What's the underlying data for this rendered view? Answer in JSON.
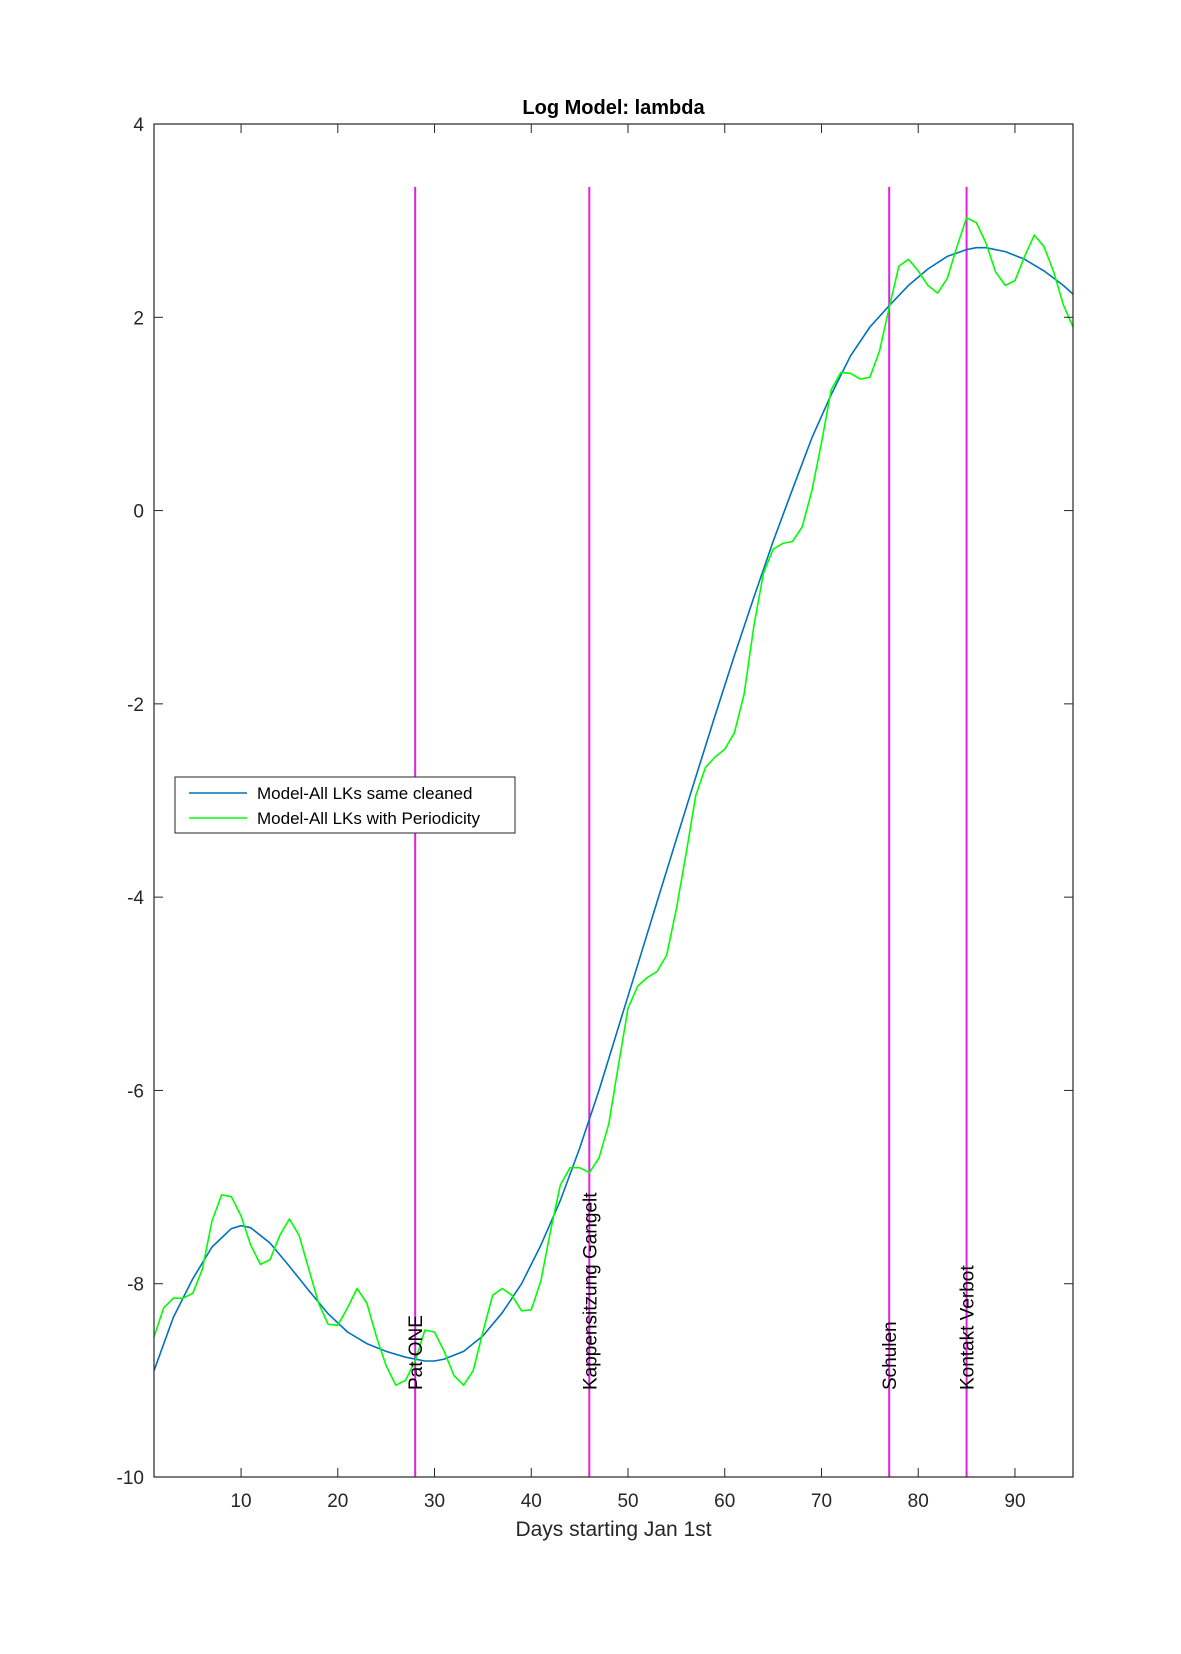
{
  "chart_data": {
    "type": "line",
    "title": "Log Model: lambda",
    "xlabel": "Days starting Jan 1st",
    "ylabel": "",
    "xlim": [
      1,
      96
    ],
    "ylim": [
      -10,
      4
    ],
    "xticks": [
      10,
      20,
      30,
      40,
      50,
      60,
      70,
      80,
      90
    ],
    "yticks": [
      -10,
      -8,
      -6,
      -4,
      -2,
      0,
      2,
      4
    ],
    "grid": false,
    "legend_position": "middle-left",
    "series": [
      {
        "name": "Model-All LKs same cleaned",
        "color": "#0072BD",
        "x": [
          1,
          3,
          5,
          7,
          9,
          10,
          11,
          13,
          15,
          17,
          19,
          21,
          23,
          25,
          27,
          29,
          30,
          31,
          33,
          35,
          37,
          39,
          41,
          43,
          45,
          47,
          49,
          51,
          53,
          55,
          57,
          59,
          61,
          63,
          65,
          67,
          69,
          71,
          73,
          75,
          77,
          79,
          81,
          83,
          85,
          86,
          87,
          89,
          91,
          93,
          95,
          96
        ],
        "y": [
          -8.9,
          -8.35,
          -7.95,
          -7.62,
          -7.43,
          -7.4,
          -7.42,
          -7.58,
          -7.82,
          -8.07,
          -8.31,
          -8.5,
          -8.62,
          -8.7,
          -8.76,
          -8.8,
          -8.8,
          -8.78,
          -8.7,
          -8.54,
          -8.3,
          -8.0,
          -7.6,
          -7.14,
          -6.6,
          -6.0,
          -5.35,
          -4.7,
          -4.05,
          -3.4,
          -2.76,
          -2.12,
          -1.5,
          -0.9,
          -0.32,
          0.22,
          0.75,
          1.2,
          1.6,
          1.9,
          2.12,
          2.33,
          2.5,
          2.63,
          2.7,
          2.72,
          2.72,
          2.68,
          2.6,
          2.48,
          2.33,
          2.24
        ]
      },
      {
        "name": "Model-All LKs with Periodicity",
        "color": "#00FF00",
        "x": [
          1,
          2,
          3,
          4,
          5,
          6,
          7,
          8,
          9,
          10,
          11,
          12,
          13,
          14,
          15,
          16,
          17,
          18,
          19,
          20,
          21,
          22,
          23,
          24,
          25,
          26,
          27,
          28,
          29,
          30,
          31,
          32,
          33,
          34,
          35,
          36,
          37,
          38,
          39,
          40,
          41,
          42,
          43,
          44,
          45,
          46,
          47,
          48,
          49,
          50,
          51,
          52,
          53,
          54,
          55,
          56,
          57,
          58,
          59,
          60,
          61,
          62,
          63,
          64,
          65,
          66,
          67,
          68,
          69,
          70,
          71,
          72,
          73,
          74,
          75,
          76,
          77,
          78,
          79,
          80,
          81,
          82,
          83,
          84,
          85,
          86,
          87,
          88,
          89,
          90,
          91,
          92,
          93,
          94,
          95,
          96
        ],
        "y": [
          -8.55,
          -8.25,
          -8.15,
          -8.15,
          -8.1,
          -7.85,
          -7.35,
          -7.08,
          -7.1,
          -7.3,
          -7.6,
          -7.8,
          -7.75,
          -7.5,
          -7.33,
          -7.5,
          -7.85,
          -8.2,
          -8.42,
          -8.43,
          -8.25,
          -8.05,
          -8.2,
          -8.55,
          -8.85,
          -9.05,
          -9.0,
          -8.8,
          -8.48,
          -8.5,
          -8.7,
          -8.95,
          -9.05,
          -8.9,
          -8.5,
          -8.12,
          -8.05,
          -8.12,
          -8.28,
          -8.27,
          -7.97,
          -7.45,
          -6.98,
          -6.8,
          -6.8,
          -6.85,
          -6.7,
          -6.35,
          -5.75,
          -5.15,
          -4.92,
          -4.83,
          -4.77,
          -4.6,
          -4.12,
          -3.55,
          -2.95,
          -2.66,
          -2.55,
          -2.47,
          -2.3,
          -1.9,
          -1.2,
          -0.65,
          -0.4,
          -0.34,
          -0.32,
          -0.17,
          0.2,
          0.7,
          1.25,
          1.43,
          1.42,
          1.36,
          1.38,
          1.65,
          2.1,
          2.53,
          2.6,
          2.48,
          2.33,
          2.25,
          2.4,
          2.73,
          3.03,
          2.98,
          2.77,
          2.47,
          2.33,
          2.38,
          2.63,
          2.85,
          2.73,
          2.47,
          2.13,
          1.9
        ]
      }
    ],
    "events": [
      {
        "x": 28,
        "label": "Pat ONE",
        "color": "#E020E0"
      },
      {
        "x": 46,
        "label": "Kappensitzung Gangelt",
        "color": "#E020E0"
      },
      {
        "x": 77,
        "label": "Schulen",
        "color": "#E020E0"
      },
      {
        "x": 85,
        "label": "Kontakt Verbot",
        "color": "#E020E0"
      }
    ],
    "event_line_range": [
      -10,
      3.35
    ],
    "event_label_y": -9.1
  }
}
